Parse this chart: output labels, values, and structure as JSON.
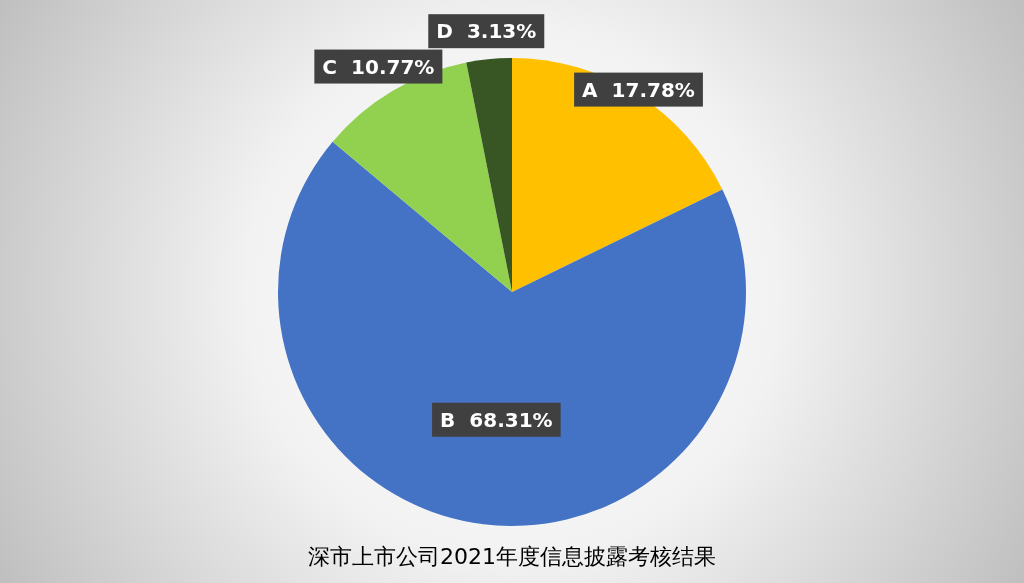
{
  "chart_data": {
    "type": "pie",
    "title": "深市上市公司2021年度信息披露考核结果",
    "categories": [
      "A",
      "B",
      "C",
      "D"
    ],
    "values": [
      17.78,
      68.31,
      10.77,
      3.13
    ],
    "colors": [
      "#ffc000",
      "#4472c4",
      "#92d050",
      "#375623"
    ],
    "value_labels": [
      "17.78%",
      "68.31%",
      "10.77%",
      "3.13%"
    ],
    "legend": false
  }
}
